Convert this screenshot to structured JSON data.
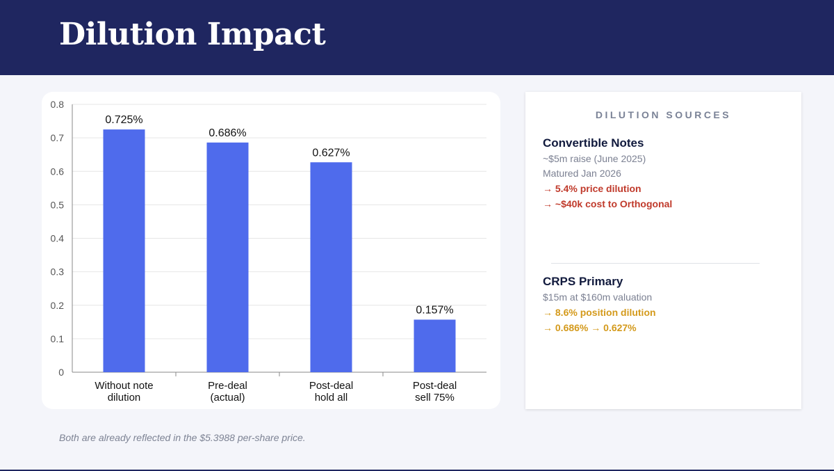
{
  "page": {
    "title": "Dilution Impact",
    "footnote": "Both are already reflected in the $5.3988 per-share price."
  },
  "chart_data": {
    "type": "bar",
    "categories": [
      [
        "Without note",
        "dilution"
      ],
      [
        "Pre-deal",
        "(actual)"
      ],
      [
        "Post-deal",
        "hold all"
      ],
      [
        "Post-deal",
        "sell 75%"
      ]
    ],
    "values": [
      0.725,
      0.686,
      0.627,
      0.157
    ],
    "data_labels": [
      "0.725%",
      "0.686%",
      "0.627%",
      "0.157%"
    ],
    "yticks": [
      "0",
      "0.1",
      "0.2",
      "0.3",
      "0.4",
      "0.5",
      "0.6",
      "0.7",
      "0.8"
    ],
    "ylim": [
      0,
      0.8
    ],
    "grid": true,
    "title": "",
    "xlabel": "",
    "ylabel": "",
    "bar_color": "#4f6bec"
  },
  "sources": {
    "title": "DILUTION SOURCES",
    "convertible": {
      "name": "Convertible Notes",
      "line1": "~$5m raise (June 2025)",
      "line2": "Matured Jan 2026",
      "hl1": "→ 5.4% price dilution",
      "hl2": "→ ~$40k cost to Orthogonal"
    },
    "crps": {
      "name": "CRPS Primary",
      "line1": "$15m at $160m valuation",
      "hl1": "→ 8.6% position dilution",
      "hl2": "→ 0.686% → 0.627%"
    }
  },
  "colors": {
    "header": "#1f2660",
    "bar": "#4f6bec",
    "negative_accent": "#c03a2b",
    "warning_accent": "#d49a1c"
  }
}
